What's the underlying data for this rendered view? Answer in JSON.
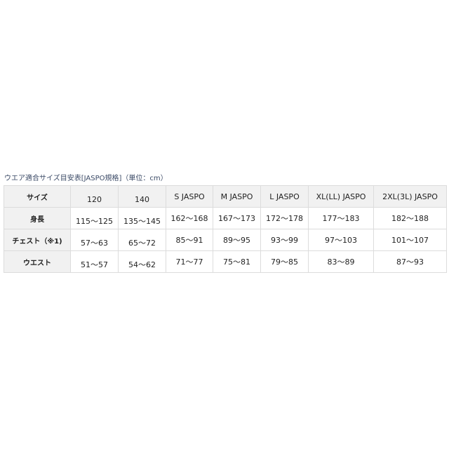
{
  "caption": "ウエア適合サイズ目安表[JASPO規格]（単位：cm）",
  "header": [
    "サイズ",
    "120",
    "140",
    "S JASPO",
    "M JASPO",
    "L JASPO",
    "XL(LL) JASPO",
    "2XL(3L) JASPO"
  ],
  "rows": [
    {
      "label": "身長",
      "values": [
        "115〜125",
        "135〜145",
        "162〜168",
        "167〜173",
        "172〜178",
        "177〜183",
        "182〜188"
      ]
    },
    {
      "label": "チェスト（※1)",
      "values": [
        "57〜63",
        "65〜72",
        "85〜91",
        "89〜95",
        "93〜99",
        "97〜103",
        "101〜107"
      ]
    },
    {
      "label": "ウエスト",
      "values": [
        "51〜57",
        "54〜62",
        "71〜77",
        "75〜81",
        "79〜85",
        "83〜89",
        "87〜93"
      ]
    }
  ]
}
